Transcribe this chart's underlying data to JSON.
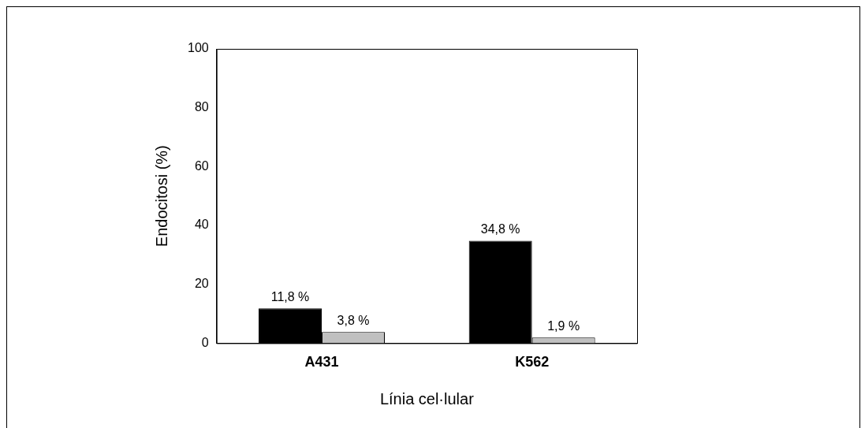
{
  "chart_data": {
    "type": "bar",
    "xlabel": "Línia cel·lular",
    "ylabel": "Endocitosi (%)",
    "categories": [
      "A431",
      "K562"
    ],
    "series": [
      {
        "color": "#000000",
        "values": [
          11.8,
          34.8
        ],
        "value_labels": [
          "11,8 %",
          "34,8 %"
        ]
      },
      {
        "color": "#c0c0c0",
        "values": [
          3.8,
          1.9
        ],
        "value_labels": [
          "3,8 %",
          "1,9 %"
        ]
      }
    ],
    "ylim": [
      0,
      100
    ],
    "yticks": [
      0,
      20,
      40,
      60,
      80,
      100
    ],
    "grid": false,
    "legend": false
  }
}
